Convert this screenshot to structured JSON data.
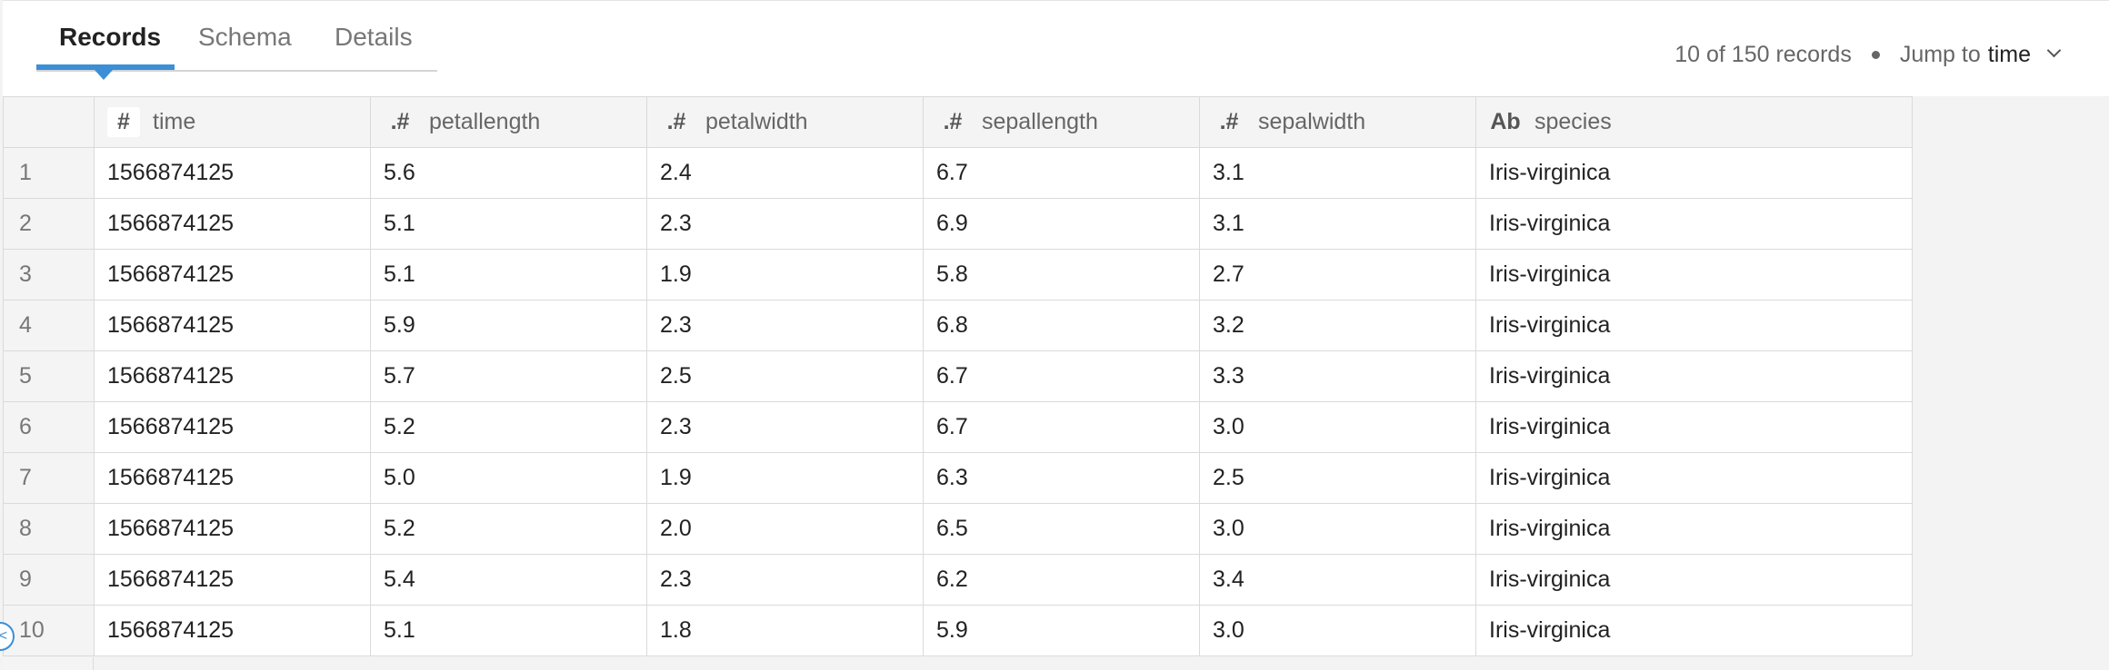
{
  "tabs": [
    {
      "label": "Records",
      "active": true
    },
    {
      "label": "Schema",
      "active": false
    },
    {
      "label": "Details",
      "active": false
    }
  ],
  "summary": {
    "count_text": "10 of 150 records",
    "jump_label": "Jump to",
    "jump_field": "time"
  },
  "table": {
    "columns": [
      {
        "type": "#",
        "name": "time"
      },
      {
        "type": ".#",
        "name": "petallength"
      },
      {
        "type": ".#",
        "name": "petalwidth"
      },
      {
        "type": ".#",
        "name": "sepallength"
      },
      {
        "type": ".#",
        "name": "sepalwidth"
      },
      {
        "type": "Ab",
        "name": "species"
      }
    ],
    "rows": [
      {
        "n": "1",
        "cells": [
          "1566874125",
          "5.6",
          "2.4",
          "6.7",
          "3.1",
          "Iris-virginica"
        ]
      },
      {
        "n": "2",
        "cells": [
          "1566874125",
          "5.1",
          "2.3",
          "6.9",
          "3.1",
          "Iris-virginica"
        ]
      },
      {
        "n": "3",
        "cells": [
          "1566874125",
          "5.1",
          "1.9",
          "5.8",
          "2.7",
          "Iris-virginica"
        ]
      },
      {
        "n": "4",
        "cells": [
          "1566874125",
          "5.9",
          "2.3",
          "6.8",
          "3.2",
          "Iris-virginica"
        ]
      },
      {
        "n": "5",
        "cells": [
          "1566874125",
          "5.7",
          "2.5",
          "6.7",
          "3.3",
          "Iris-virginica"
        ]
      },
      {
        "n": "6",
        "cells": [
          "1566874125",
          "5.2",
          "2.3",
          "6.7",
          "3.0",
          "Iris-virginica"
        ]
      },
      {
        "n": "7",
        "cells": [
          "1566874125",
          "5.0",
          "1.9",
          "6.3",
          "2.5",
          "Iris-virginica"
        ]
      },
      {
        "n": "8",
        "cells": [
          "1566874125",
          "5.2",
          "2.0",
          "6.5",
          "3.0",
          "Iris-virginica"
        ]
      },
      {
        "n": "9",
        "cells": [
          "1566874125",
          "5.4",
          "2.3",
          "6.2",
          "3.4",
          "Iris-virginica"
        ]
      },
      {
        "n": "10",
        "cells": [
          "1566874125",
          "5.1",
          "1.8",
          "5.9",
          "3.0",
          "Iris-virginica"
        ]
      }
    ]
  },
  "icons": {
    "collapse": "chevron-left-icon",
    "jump_dropdown": "chevron-down-icon"
  },
  "colors": {
    "accent": "#3a8fd6"
  }
}
